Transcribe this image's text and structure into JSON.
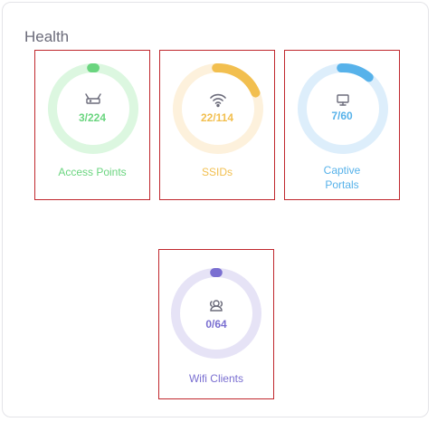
{
  "panel": {
    "title": "Health"
  },
  "tiles": [
    {
      "label": "Access Points",
      "count": "3/224",
      "used": 3,
      "total": 224,
      "icon": "router-icon",
      "color": "#6ad57f",
      "track": "#dcf7e0"
    },
    {
      "label": "SSIDs",
      "count": "22/114",
      "used": 22,
      "total": 114,
      "icon": "wifi-icon",
      "color": "#f2bf4f",
      "track": "#fdf1dc"
    },
    {
      "label_line1": "Captive",
      "label_line2": "Portals",
      "count": "7/60",
      "used": 7,
      "total": 60,
      "icon": "monitor-icon",
      "color": "#57b2ea",
      "track": "#ddeefb"
    },
    {
      "label": "Wifi Clients",
      "count": "0/64",
      "used": 0,
      "total": 64,
      "icon": "users-icon",
      "color": "#7a6fd1",
      "track": "#e6e3f6"
    }
  ]
}
